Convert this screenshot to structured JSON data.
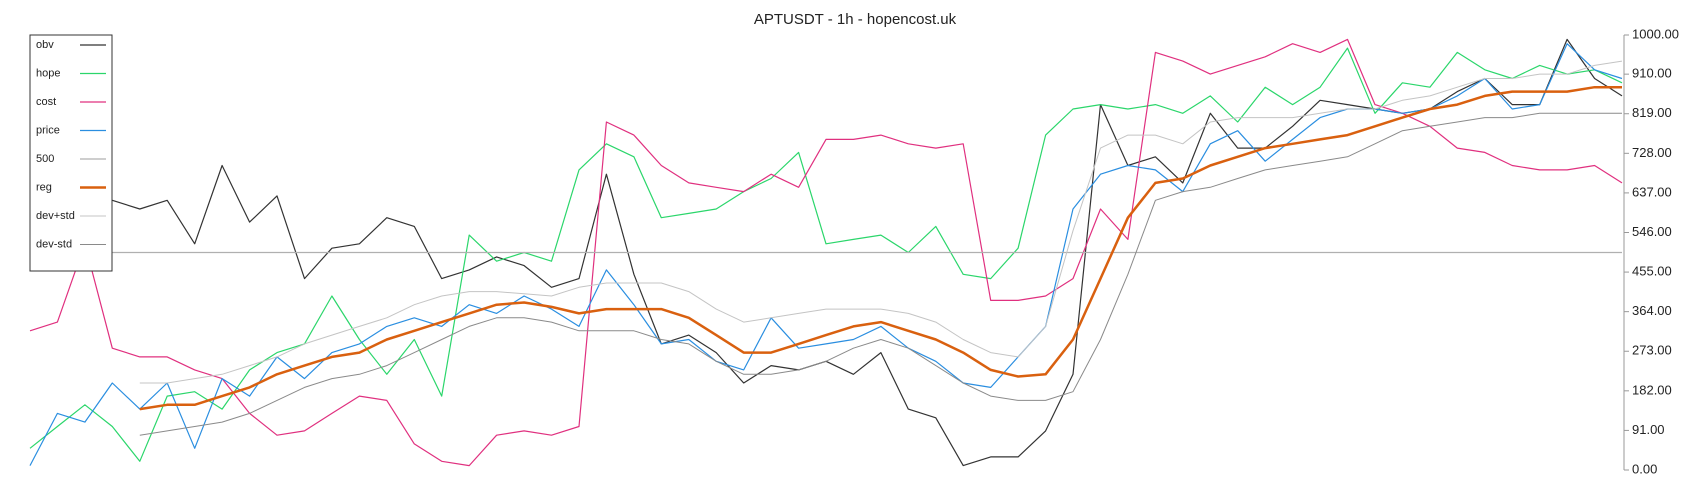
{
  "chart_data": {
    "type": "line",
    "title": "APTUSDT - 1h - hopencost.uk",
    "ylim": [
      0,
      1000
    ],
    "yticks": [
      {
        "value": 0,
        "label": "0.00"
      },
      {
        "value": 91,
        "label": "91.00"
      },
      {
        "value": 182,
        "label": "182.00"
      },
      {
        "value": 273,
        "label": "273.00"
      },
      {
        "value": 364,
        "label": "364.00"
      },
      {
        "value": 455,
        "label": "455.00"
      },
      {
        "value": 546,
        "label": "546.00"
      },
      {
        "value": 637,
        "label": "637.00"
      },
      {
        "value": 728,
        "label": "728.00"
      },
      {
        "value": 819,
        "label": "819.00"
      },
      {
        "value": 910,
        "label": "910.00"
      },
      {
        "value": 1000,
        "label": "1000.00"
      }
    ],
    "legend": "upper left",
    "series": [
      {
        "name": "obv",
        "color": "#333333",
        "linewidth": 1.2,
        "values": [
          null,
          null,
          null,
          620,
          600,
          620,
          520,
          700,
          570,
          630,
          440,
          510,
          520,
          580,
          560,
          440,
          460,
          490,
          470,
          420,
          440,
          680,
          450,
          290,
          310,
          270,
          200,
          240,
          230,
          250,
          220,
          270,
          140,
          120,
          10,
          30,
          30,
          90,
          220,
          840,
          700,
          720,
          660,
          820,
          740,
          740,
          790,
          850,
          840,
          830,
          820,
          830,
          870,
          900,
          840,
          840,
          990,
          900,
          860
        ]
      },
      {
        "name": "hope",
        "color": "#2bd66b",
        "linewidth": 1.2,
        "values": [
          50,
          100,
          150,
          100,
          20,
          170,
          180,
          140,
          230,
          270,
          290,
          400,
          300,
          220,
          300,
          170,
          540,
          480,
          500,
          480,
          690,
          750,
          720,
          580,
          590,
          600,
          640,
          670,
          730,
          520,
          530,
          540,
          500,
          560,
          450,
          440,
          510,
          770,
          830,
          840,
          830,
          840,
          820,
          860,
          800,
          880,
          840,
          880,
          970,
          820,
          890,
          880,
          960,
          920,
          900,
          930,
          910,
          920,
          890
        ]
      },
      {
        "name": "cost",
        "color": "#e0307f",
        "linewidth": 1.2,
        "values": [
          320,
          340,
          520,
          280,
          260,
          260,
          230,
          210,
          130,
          80,
          90,
          130,
          170,
          160,
          60,
          20,
          10,
          80,
          90,
          80,
          100,
          800,
          770,
          700,
          660,
          650,
          640,
          680,
          650,
          760,
          760,
          770,
          750,
          740,
          750,
          390,
          390,
          400,
          440,
          600,
          530,
          960,
          940,
          910,
          930,
          950,
          980,
          960,
          990,
          840,
          820,
          790,
          740,
          730,
          700,
          690,
          690,
          700,
          660
        ]
      },
      {
        "name": "price",
        "color": "#2a8ee0",
        "linewidth": 1.2,
        "values": [
          10,
          130,
          110,
          200,
          140,
          200,
          50,
          210,
          170,
          260,
          210,
          270,
          290,
          330,
          350,
          330,
          380,
          360,
          400,
          370,
          330,
          460,
          380,
          290,
          300,
          250,
          230,
          350,
          280,
          290,
          300,
          330,
          280,
          250,
          200,
          190,
          260,
          330,
          600,
          680,
          700,
          690,
          640,
          750,
          780,
          710,
          760,
          810,
          830,
          830,
          820,
          830,
          860,
          900,
          830,
          840,
          980,
          920,
          900
        ]
      },
      {
        "name": "500",
        "color": "#b0b0b0",
        "linewidth": 1.2,
        "values": [
          500,
          500,
          500,
          500,
          500,
          500,
          500,
          500,
          500,
          500,
          500,
          500,
          500,
          500,
          500,
          500,
          500,
          500,
          500,
          500,
          500,
          500,
          500,
          500,
          500,
          500,
          500,
          500,
          500,
          500,
          500,
          500,
          500,
          500,
          500,
          500,
          500,
          500,
          500,
          500,
          500,
          500,
          500,
          500,
          500,
          500,
          500,
          500,
          500,
          500,
          500,
          500,
          500,
          500,
          500,
          500,
          500,
          500,
          500
        ]
      },
      {
        "name": "reg",
        "color": "#d9600f",
        "linewidth": 2.5,
        "values": [
          null,
          null,
          null,
          null,
          140,
          150,
          150,
          170,
          190,
          220,
          240,
          260,
          270,
          300,
          320,
          340,
          360,
          380,
          385,
          375,
          360,
          370,
          370,
          370,
          350,
          310,
          270,
          270,
          290,
          310,
          330,
          340,
          320,
          300,
          270,
          230,
          215,
          220,
          300,
          440,
          580,
          660,
          670,
          700,
          720,
          740,
          750,
          760,
          770,
          790,
          810,
          830,
          840,
          860,
          870,
          870,
          870,
          880,
          880
        ]
      },
      {
        "name": "dev+std",
        "color": "#c4c4c4",
        "linewidth": 1,
        "values": [
          null,
          null,
          null,
          null,
          200,
          200,
          210,
          220,
          240,
          260,
          290,
          310,
          330,
          350,
          380,
          400,
          410,
          410,
          405,
          400,
          420,
          430,
          430,
          430,
          410,
          370,
          340,
          350,
          360,
          370,
          370,
          370,
          360,
          340,
          300,
          270,
          260,
          330,
          550,
          740,
          770,
          770,
          750,
          800,
          810,
          810,
          810,
          820,
          830,
          830,
          850,
          860,
          880,
          900,
          900,
          910,
          910,
          930,
          940
        ]
      },
      {
        "name": "dev-std",
        "color": "#8a8a8a",
        "linewidth": 1,
        "values": [
          null,
          null,
          null,
          null,
          80,
          90,
          100,
          110,
          130,
          160,
          190,
          210,
          220,
          240,
          270,
          300,
          330,
          350,
          350,
          340,
          320,
          320,
          320,
          300,
          290,
          250,
          220,
          220,
          230,
          250,
          280,
          300,
          280,
          240,
          200,
          170,
          160,
          160,
          180,
          300,
          450,
          620,
          640,
          650,
          670,
          690,
          700,
          710,
          720,
          750,
          780,
          790,
          800,
          810,
          810,
          820,
          820,
          820,
          820
        ]
      }
    ]
  }
}
